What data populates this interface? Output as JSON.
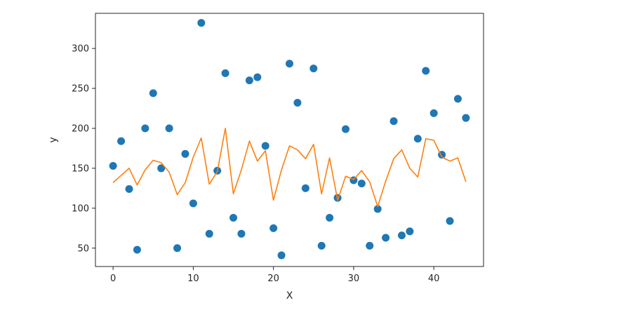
{
  "chart_data": {
    "type": "scatter",
    "title": "",
    "xlabel": "X",
    "ylabel": "y",
    "xlim": [
      -2.2,
      46.2
    ],
    "ylim": [
      27,
      344
    ],
    "xticks": [
      0,
      10,
      20,
      30,
      40
    ],
    "yticks": [
      50,
      100,
      150,
      200,
      250,
      300
    ],
    "grid": false,
    "legend": "none",
    "series": [
      {
        "kind": "scatter",
        "color": "#1f77b4",
        "x": [
          0,
          1,
          2,
          3,
          4,
          5,
          6,
          7,
          8,
          9,
          10,
          11,
          12,
          13,
          14,
          15,
          16,
          17,
          18,
          19,
          20,
          21,
          22,
          23,
          24,
          25,
          26,
          27,
          28,
          29,
          30,
          31,
          32,
          33,
          34,
          35,
          36,
          37,
          38,
          39,
          40,
          41,
          42,
          43,
          44
        ],
        "y": [
          153,
          184,
          124,
          48,
          200,
          244,
          150,
          200,
          50,
          168,
          106,
          332,
          68,
          147,
          269,
          88,
          68,
          260,
          264,
          178,
          75,
          41,
          281,
          232,
          125,
          275,
          53,
          88,
          113,
          199,
          135,
          131,
          53,
          99,
          63,
          209,
          66,
          71,
          187,
          272,
          219,
          167,
          84,
          237,
          213
        ]
      },
      {
        "kind": "line",
        "color": "#ff7f0e",
        "x": [
          0,
          1,
          2,
          3,
          4,
          5,
          6,
          7,
          8,
          9,
          10,
          11,
          12,
          13,
          14,
          15,
          16,
          17,
          18,
          19,
          20,
          21,
          22,
          23,
          24,
          25,
          26,
          27,
          28,
          29,
          30,
          31,
          32,
          33,
          34,
          35,
          36,
          37,
          38,
          39,
          40,
          41,
          42,
          43,
          44
        ],
        "y": [
          132,
          141,
          150,
          129,
          148,
          160,
          157,
          145,
          117,
          132,
          164,
          188,
          130,
          146,
          200,
          118,
          148,
          184,
          159,
          172,
          110,
          148,
          178,
          173,
          162,
          180,
          118,
          163,
          110,
          140,
          136,
          147,
          133,
          102,
          134,
          162,
          173,
          150,
          139,
          187,
          185,
          164,
          159,
          163,
          133
        ]
      }
    ]
  }
}
